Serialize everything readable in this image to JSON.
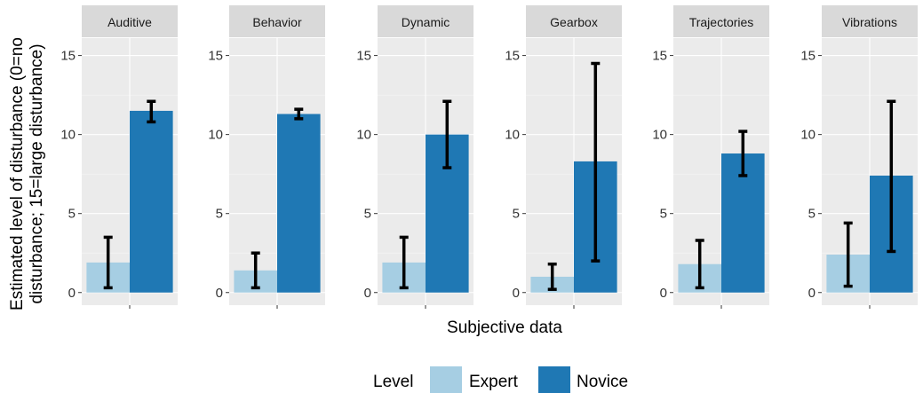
{
  "chart_data": {
    "type": "bar",
    "facets": [
      "Auditive",
      "Behavior",
      "Dynamic",
      "Gearbox",
      "Trajectories",
      "Vibrations"
    ],
    "series": [
      {
        "name": "Expert",
        "color": "#a6cee3",
        "values": [
          1.9,
          1.4,
          1.9,
          1.0,
          1.8,
          2.4
        ],
        "error_low": [
          0.3,
          0.3,
          0.3,
          0.2,
          0.3,
          0.4
        ],
        "error_high": [
          3.5,
          2.5,
          3.5,
          1.8,
          3.3,
          4.4
        ]
      },
      {
        "name": "Novice",
        "color": "#1f78b4",
        "values": [
          11.5,
          11.3,
          10.0,
          8.3,
          8.8,
          7.4
        ],
        "error_low": [
          10.8,
          11.0,
          7.9,
          2.0,
          7.4,
          2.6
        ],
        "error_high": [
          12.1,
          11.6,
          12.1,
          14.5,
          10.2,
          12.1
        ]
      }
    ],
    "xlabel": "Subjective data",
    "ylabel_line1": "Estimated level of disturbance (0=no",
    "ylabel_line2": "disturbance; 15=large disturbance)",
    "ylim": [
      -0.8,
      16.1
    ],
    "yticks": [
      0,
      5,
      10,
      15
    ],
    "ytick_labels": [
      "0",
      "5",
      "10",
      "15"
    ],
    "legend_title": "Level",
    "legend_position": "bottom",
    "grid": true,
    "panel_background": "#ebebeb",
    "strip_background": "#d9d9d9"
  }
}
